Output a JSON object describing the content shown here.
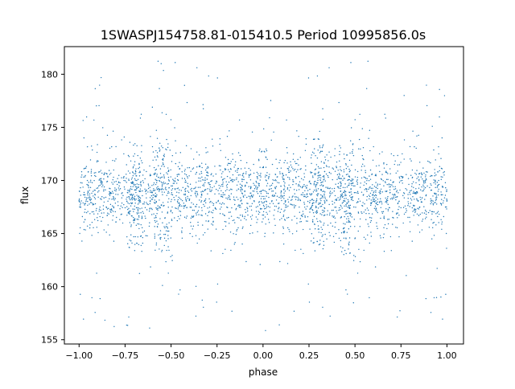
{
  "chart_data": {
    "type": "scatter",
    "title": "1SWASPJ154758.81-015410.5 Period 10995856.0s",
    "xlabel": "phase",
    "ylabel": "flux",
    "xlim": [
      -1.08,
      1.09
    ],
    "ylim": [
      154.6,
      182.6
    ],
    "x_ticks": [
      -1.0,
      -0.75,
      -0.5,
      -0.25,
      0.0,
      0.25,
      0.5,
      0.75,
      1.0
    ],
    "x_tick_labels": [
      "−1.00",
      "−0.75",
      "−0.50",
      "−0.25",
      "0.00",
      "0.25",
      "0.50",
      "0.75",
      "1.00"
    ],
    "y_ticks": [
      155,
      160,
      165,
      170,
      175,
      180
    ],
    "y_tick_labels": [
      "155",
      "160",
      "165",
      "170",
      "175",
      "180"
    ],
    "grid": false,
    "legend": "none",
    "point_color": "#1f77b4",
    "series": [
      {
        "x_range": [
          -1.0,
          1.0
        ],
        "y_core_range": [
          165.5,
          172.0
        ],
        "y_full_range": [
          155.8,
          181.3
        ],
        "y_center": 168.8,
        "mirrored_about_zero": true,
        "dense_clusters": [
          {
            "phase": -0.7,
            "y_range": [
              163.5,
              174.0
            ]
          },
          {
            "phase": -0.55,
            "y_range": [
              163.0,
              173.5
            ]
          },
          {
            "phase": 0.3,
            "y_range": [
              163.5,
              174.0
            ]
          },
          {
            "phase": 0.45,
            "y_range": [
              163.0,
              173.5
            ]
          }
        ]
      }
    ]
  }
}
